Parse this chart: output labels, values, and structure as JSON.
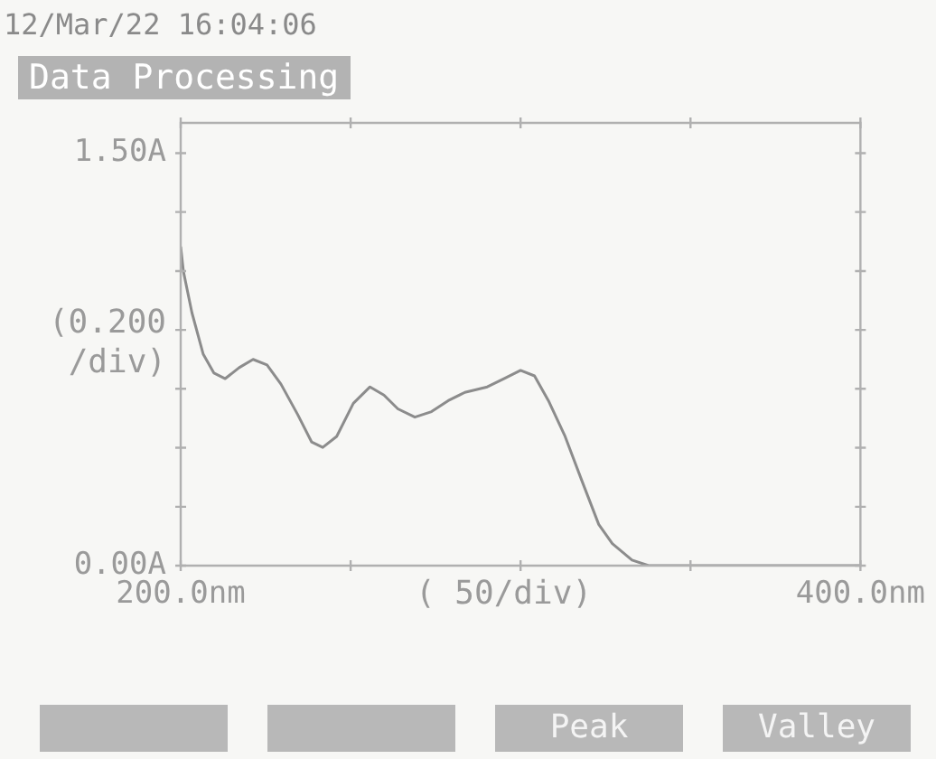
{
  "chart_data": {
    "type": "line",
    "title": "Data Processing",
    "xlabel": "( 50/div)",
    "ylabel": "(0.200 /div)",
    "annotations": [
      "12/Mar/22 16:04:06",
      "Peak",
      "Valley"
    ],
    "x": [
      200,
      200.8,
      203.3,
      206.6,
      209.8,
      213.1,
      217.2,
      221.3,
      225.4,
      229.5,
      234.4,
      238.5,
      241.8,
      245.9,
      250.8,
      255.7,
      259.8,
      263.9,
      268.9,
      273.8,
      278.7,
      283.6,
      290.2,
      295.1,
      300,
      304.1,
      308.2,
      313.1,
      318,
      323,
      327,
      332.8,
      337.7,
      347.5,
      400
    ],
    "series": [
      {
        "color": "#8c8c8c",
        "values": [
          1.16,
          1.07,
          0.92,
          0.77,
          0.7,
          0.68,
          0.72,
          0.75,
          0.73,
          0.66,
          0.55,
          0.45,
          0.43,
          0.47,
          0.59,
          0.65,
          0.62,
          0.57,
          0.54,
          0.56,
          0.6,
          0.63,
          0.65,
          0.68,
          0.71,
          0.69,
          0.6,
          0.47,
          0.31,
          0.15,
          0.08,
          0.02,
          0,
          0,
          0
        ]
      }
    ],
    "xlim": [
      200,
      400
    ],
    "xticks": [
      {
        "value": 200,
        "label": "200.0nm"
      },
      {
        "value": 250,
        "label": null
      },
      {
        "value": 300,
        "label": null
      },
      {
        "value": 350,
        "label": null
      },
      {
        "value": 400,
        "label": "400.0nm"
      }
    ],
    "ylim": [
      0,
      1.61
    ],
    "yticks": [
      {
        "value": 0,
        "label": "0.00A"
      },
      {
        "value": 0.214,
        "label": null
      },
      {
        "value": 0.429,
        "label": null
      },
      {
        "value": 0.643,
        "label": null
      },
      {
        "value": 0.857,
        "label": null
      },
      {
        "value": 1.071,
        "label": null
      },
      {
        "value": 1.286,
        "label": null
      },
      {
        "value": 1.5,
        "label": "1.50A"
      }
    ],
    "grid": false,
    "legend": false,
    "marker": "none",
    "line_style": "solid"
  }
}
